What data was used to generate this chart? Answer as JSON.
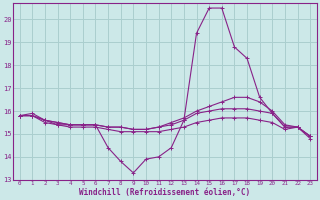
{
  "xlabel": "Windchill (Refroidissement éolien,°C)",
  "xlim": [
    -0.5,
    23.5
  ],
  "ylim": [
    13,
    20.7
  ],
  "yticks": [
    13,
    14,
    15,
    16,
    17,
    18,
    19,
    20
  ],
  "xticks": [
    0,
    1,
    2,
    3,
    4,
    5,
    6,
    7,
    8,
    9,
    10,
    11,
    12,
    13,
    14,
    15,
    16,
    17,
    18,
    19,
    20,
    21,
    22,
    23
  ],
  "background_color": "#cce8e8",
  "grid_color": "#aacece",
  "line_color": "#882288",
  "series": [
    [
      15.8,
      15.9,
      15.6,
      15.4,
      15.4,
      15.4,
      15.4,
      14.4,
      13.8,
      13.3,
      13.9,
      14.0,
      14.4,
      15.6,
      19.4,
      20.5,
      20.5,
      18.8,
      18.3,
      16.6,
      15.9,
      15.3,
      15.3,
      14.8
    ],
    [
      15.8,
      15.8,
      15.6,
      15.5,
      15.4,
      15.4,
      15.4,
      15.3,
      15.3,
      15.2,
      15.2,
      15.3,
      15.5,
      15.7,
      16.0,
      16.2,
      16.4,
      16.6,
      16.6,
      16.4,
      16.0,
      15.4,
      15.3,
      14.9
    ],
    [
      15.8,
      15.8,
      15.6,
      15.5,
      15.4,
      15.4,
      15.4,
      15.3,
      15.3,
      15.2,
      15.2,
      15.3,
      15.4,
      15.6,
      15.9,
      16.0,
      16.1,
      16.1,
      16.1,
      16.0,
      15.9,
      15.3,
      15.3,
      14.9
    ],
    [
      15.8,
      15.8,
      15.5,
      15.4,
      15.3,
      15.3,
      15.3,
      15.2,
      15.1,
      15.1,
      15.1,
      15.1,
      15.2,
      15.3,
      15.5,
      15.6,
      15.7,
      15.7,
      15.7,
      15.6,
      15.5,
      15.2,
      15.3,
      14.9
    ]
  ]
}
